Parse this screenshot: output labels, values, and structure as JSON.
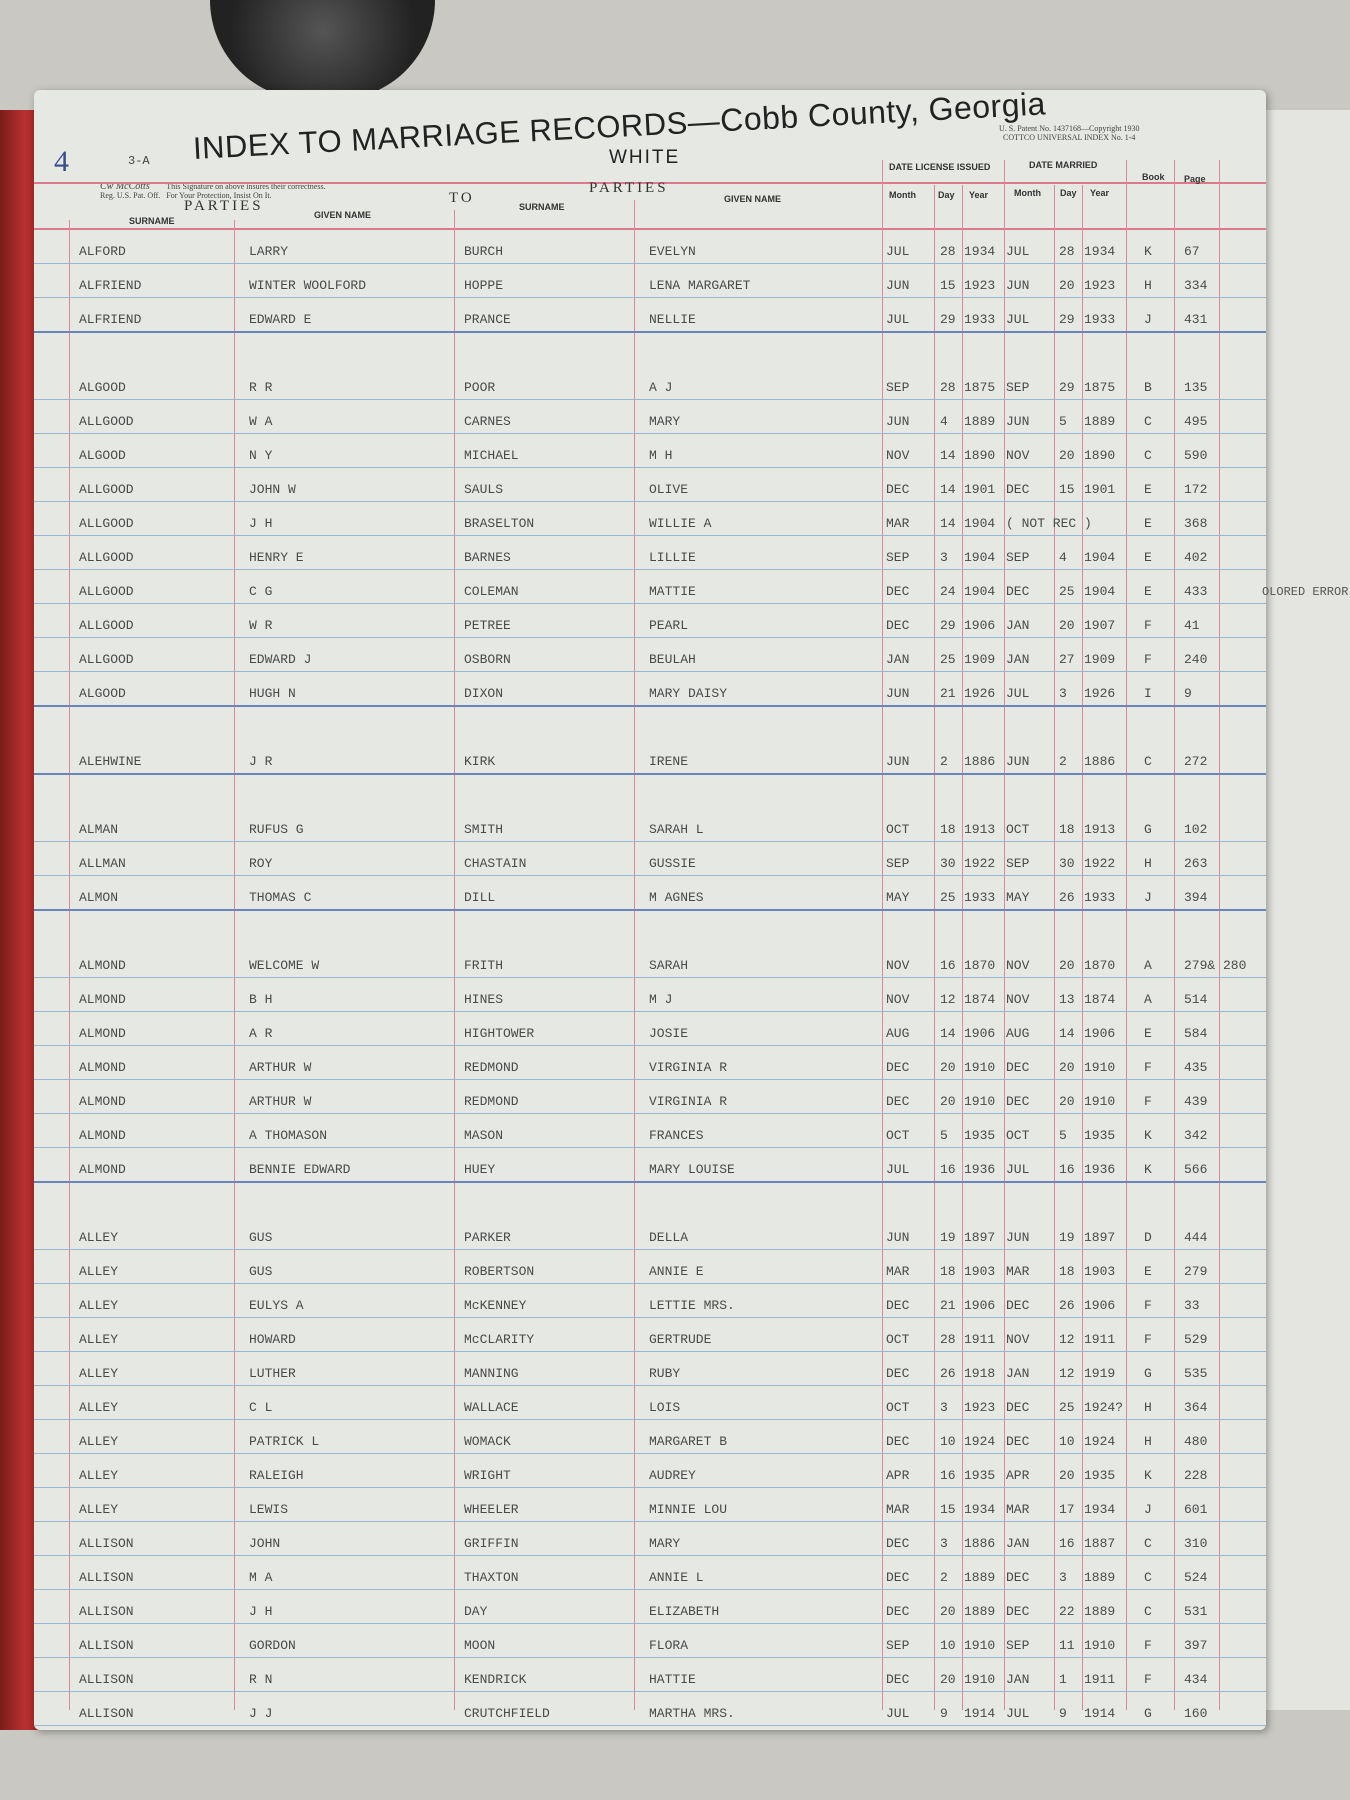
{
  "header": {
    "index_mark": "4",
    "form_code": "3-A",
    "title": "INDEX TO MARRIAGE RECORDS",
    "county": "—Cobb County, Georgia",
    "subtitle": "WHITE",
    "patent_line1": "U. S. Patent No. 1437168—Copyright 1930",
    "patent_line2": "COTTCO UNIVERSAL INDEX No. 1-4",
    "signature_logo": "Cw McCotts",
    "signature_reg": "Reg. U.S. Pat. Off.",
    "signature_note1": "This Signature on above insures their correctness.",
    "signature_note2": "For Your Protection, Insist On It."
  },
  "columns": {
    "parties_left": "PARTIES",
    "to": "TO",
    "parties_right": "PARTIES",
    "surname": "SURNAME",
    "given_name": "GIVEN NAME",
    "date_license_issued": "DATE LICENSE ISSUED",
    "date_married": "DATE MARRIED",
    "month": "Month",
    "day": "Day",
    "year": "Year",
    "book": "Book",
    "page": "Page"
  },
  "margin_note": "OLORED ERROR",
  "records": [
    [
      "ALFORD",
      "LARRY",
      "BURCH",
      "EVELYN",
      "JUL",
      "28",
      "1934",
      "JUL",
      "28",
      "1934",
      "K",
      "67"
    ],
    [
      "ALFRIEND",
      "WINTER WOOLFORD",
      "HOPPE",
      "LENA MARGARET",
      "JUN",
      "15",
      "1923",
      "JUN",
      "20",
      "1923",
      "H",
      "334"
    ],
    [
      "ALFRIEND",
      "EDWARD E",
      "PRANCE",
      "NELLIE",
      "JUL",
      "29",
      "1933",
      "JUL",
      "29",
      "1933",
      "J",
      "431"
    ],
    [
      "ALGOOD",
      "R R",
      "POOR",
      "A J",
      "SEP",
      "28",
      "1875",
      "SEP",
      "29",
      "1875",
      "B",
      "135"
    ],
    [
      "ALLGOOD",
      "W A",
      "CARNES",
      "MARY",
      "JUN",
      "4",
      "1889",
      "JUN",
      "5",
      "1889",
      "C",
      "495"
    ],
    [
      "ALGOOD",
      "N Y",
      "MICHAEL",
      "M H",
      "NOV",
      "14",
      "1890",
      "NOV",
      "20",
      "1890",
      "C",
      "590"
    ],
    [
      "ALLGOOD",
      "JOHN W",
      "SAULS",
      "OLIVE",
      "DEC",
      "14",
      "1901",
      "DEC",
      "15",
      "1901",
      "E",
      "172"
    ],
    [
      "ALLGOOD",
      "J H",
      "BRASELTON",
      "WILLIE A",
      "MAR",
      "14",
      "1904",
      "( NOT REC )",
      "",
      "",
      "E",
      "368"
    ],
    [
      "ALLGOOD",
      "HENRY E",
      "BARNES",
      "LILLIE",
      "SEP",
      "3",
      "1904",
      "SEP",
      "4",
      "1904",
      "E",
      "402"
    ],
    [
      "ALLGOOD",
      "C G",
      "COLEMAN",
      "MATTIE",
      "DEC",
      "24",
      "1904",
      "DEC",
      "25",
      "1904",
      "E",
      "433"
    ],
    [
      "ALLGOOD",
      "W R",
      "PETREE",
      "PEARL",
      "DEC",
      "29",
      "1906",
      "JAN",
      "20",
      "1907",
      "F",
      "41"
    ],
    [
      "ALLGOOD",
      "EDWARD J",
      "OSBORN",
      "BEULAH",
      "JAN",
      "25",
      "1909",
      "JAN",
      "27",
      "1909",
      "F",
      "240"
    ],
    [
      "ALGOOD",
      "HUGH N",
      "DIXON",
      "MARY DAISY",
      "JUN",
      "21",
      "1926",
      "JUL",
      "3",
      "1926",
      "I",
      "9"
    ],
    [
      "ALEHWINE",
      "J R",
      "KIRK",
      "IRENE",
      "JUN",
      "2",
      "1886",
      "JUN",
      "2",
      "1886",
      "C",
      "272"
    ],
    [
      "ALMAN",
      "RUFUS G",
      "SMITH",
      "SARAH L",
      "OCT",
      "18",
      "1913",
      "OCT",
      "18",
      "1913",
      "G",
      "102"
    ],
    [
      "ALLMAN",
      "ROY",
      "CHASTAIN",
      "GUSSIE",
      "SEP",
      "30",
      "1922",
      "SEP",
      "30",
      "1922",
      "H",
      "263"
    ],
    [
      "ALMON",
      "THOMAS C",
      "DILL",
      "M AGNES",
      "MAY",
      "25",
      "1933",
      "MAY",
      "26",
      "1933",
      "J",
      "394"
    ],
    [
      "ALMOND",
      "WELCOME W",
      "FRITH",
      "SARAH",
      "NOV",
      "16",
      "1870",
      "NOV",
      "20",
      "1870",
      "A",
      "279& 280"
    ],
    [
      "ALMOND",
      "B H",
      "HINES",
      "M J",
      "NOV",
      "12",
      "1874",
      "NOV",
      "13",
      "1874",
      "A",
      "514"
    ],
    [
      "ALMOND",
      "A R",
      "HIGHTOWER",
      "JOSIE",
      "AUG",
      "14",
      "1906",
      "AUG",
      "14",
      "1906",
      "E",
      "584"
    ],
    [
      "ALMOND",
      "ARTHUR W",
      "REDMOND",
      "VIRGINIA R",
      "DEC",
      "20",
      "1910",
      "DEC",
      "20",
      "1910",
      "F",
      "435"
    ],
    [
      "ALMOND",
      "ARTHUR W",
      "REDMOND",
      "VIRGINIA R",
      "DEC",
      "20",
      "1910",
      "DEC",
      "20",
      "1910",
      "F",
      "439"
    ],
    [
      "ALMOND",
      "A THOMASON",
      "MASON",
      "FRANCES",
      "OCT",
      "5",
      "1935",
      "OCT",
      "5",
      "1935",
      "K",
      "342"
    ],
    [
      "ALMOND",
      "BENNIE EDWARD",
      "HUEY",
      "MARY LOUISE",
      "JUL",
      "16",
      "1936",
      "JUL",
      "16",
      "1936",
      "K",
      "566"
    ],
    [
      "ALLEY",
      "GUS",
      "PARKER",
      "DELLA",
      "JUN",
      "19",
      "1897",
      "JUN",
      "19",
      "1897",
      "D",
      "444"
    ],
    [
      "ALLEY",
      "GUS",
      "ROBERTSON",
      "ANNIE E",
      "MAR",
      "18",
      "1903",
      "MAR",
      "18",
      "1903",
      "E",
      "279"
    ],
    [
      "ALLEY",
      "EULYS A",
      "McKENNEY",
      "LETTIE MRS.",
      "DEC",
      "21",
      "1906",
      "DEC",
      "26",
      "1906",
      "F",
      "33"
    ],
    [
      "ALLEY",
      "HOWARD",
      "McCLARITY",
      "GERTRUDE",
      "OCT",
      "28",
      "1911",
      "NOV",
      "12",
      "1911",
      "F",
      "529"
    ],
    [
      "ALLEY",
      "LUTHER",
      "MANNING",
      "RUBY",
      "DEC",
      "26",
      "1918",
      "JAN",
      "12",
      "1919",
      "G",
      "535"
    ],
    [
      "ALLEY",
      "C L",
      "WALLACE",
      "LOIS",
      "OCT",
      "3",
      "1923",
      "DEC",
      "25",
      "1924?",
      "H",
      "364"
    ],
    [
      "ALLEY",
      "PATRICK L",
      "WOMACK",
      "MARGARET B",
      "DEC",
      "10",
      "1924",
      "DEC",
      "10",
      "1924",
      "H",
      "480"
    ],
    [
      "ALLEY",
      "RALEIGH",
      "WRIGHT",
      "AUDREY",
      "APR",
      "16",
      "1935",
      "APR",
      "20",
      "1935",
      "K",
      "228"
    ],
    [
      "ALLEY",
      "LEWIS",
      "WHEELER",
      "MINNIE LOU",
      "MAR",
      "15",
      "1934",
      "MAR",
      "17",
      "1934",
      "J",
      "601"
    ],
    [
      "ALLISON",
      "JOHN",
      "GRIFFIN",
      "MARY",
      "DEC",
      "3",
      "1886",
      "JAN",
      "16",
      "1887",
      "C",
      "310"
    ],
    [
      "ALLISON",
      "M A",
      "THAXTON",
      "ANNIE L",
      "DEC",
      "2",
      "1889",
      "DEC",
      "3",
      "1889",
      "C",
      "524"
    ],
    [
      "ALLISON",
      "J H",
      "DAY",
      "ELIZABETH",
      "DEC",
      "20",
      "1889",
      "DEC",
      "22",
      "1889",
      "C",
      "531"
    ],
    [
      "ALLISON",
      "GORDON",
      "MOON",
      "FLORA",
      "SEP",
      "10",
      "1910",
      "SEP",
      "11",
      "1910",
      "F",
      "397"
    ],
    [
      "ALLISON",
      "R N",
      "KENDRICK",
      "HATTIE",
      "DEC",
      "20",
      "1910",
      "JAN",
      "1",
      "1911",
      "F",
      "434"
    ],
    [
      "ALLISON",
      "J J",
      "CRUTCHFIELD",
      "MARTHA MRS.",
      "JUL",
      "9",
      "1914",
      "JUL",
      "9",
      "1914",
      "G",
      "160"
    ]
  ]
}
